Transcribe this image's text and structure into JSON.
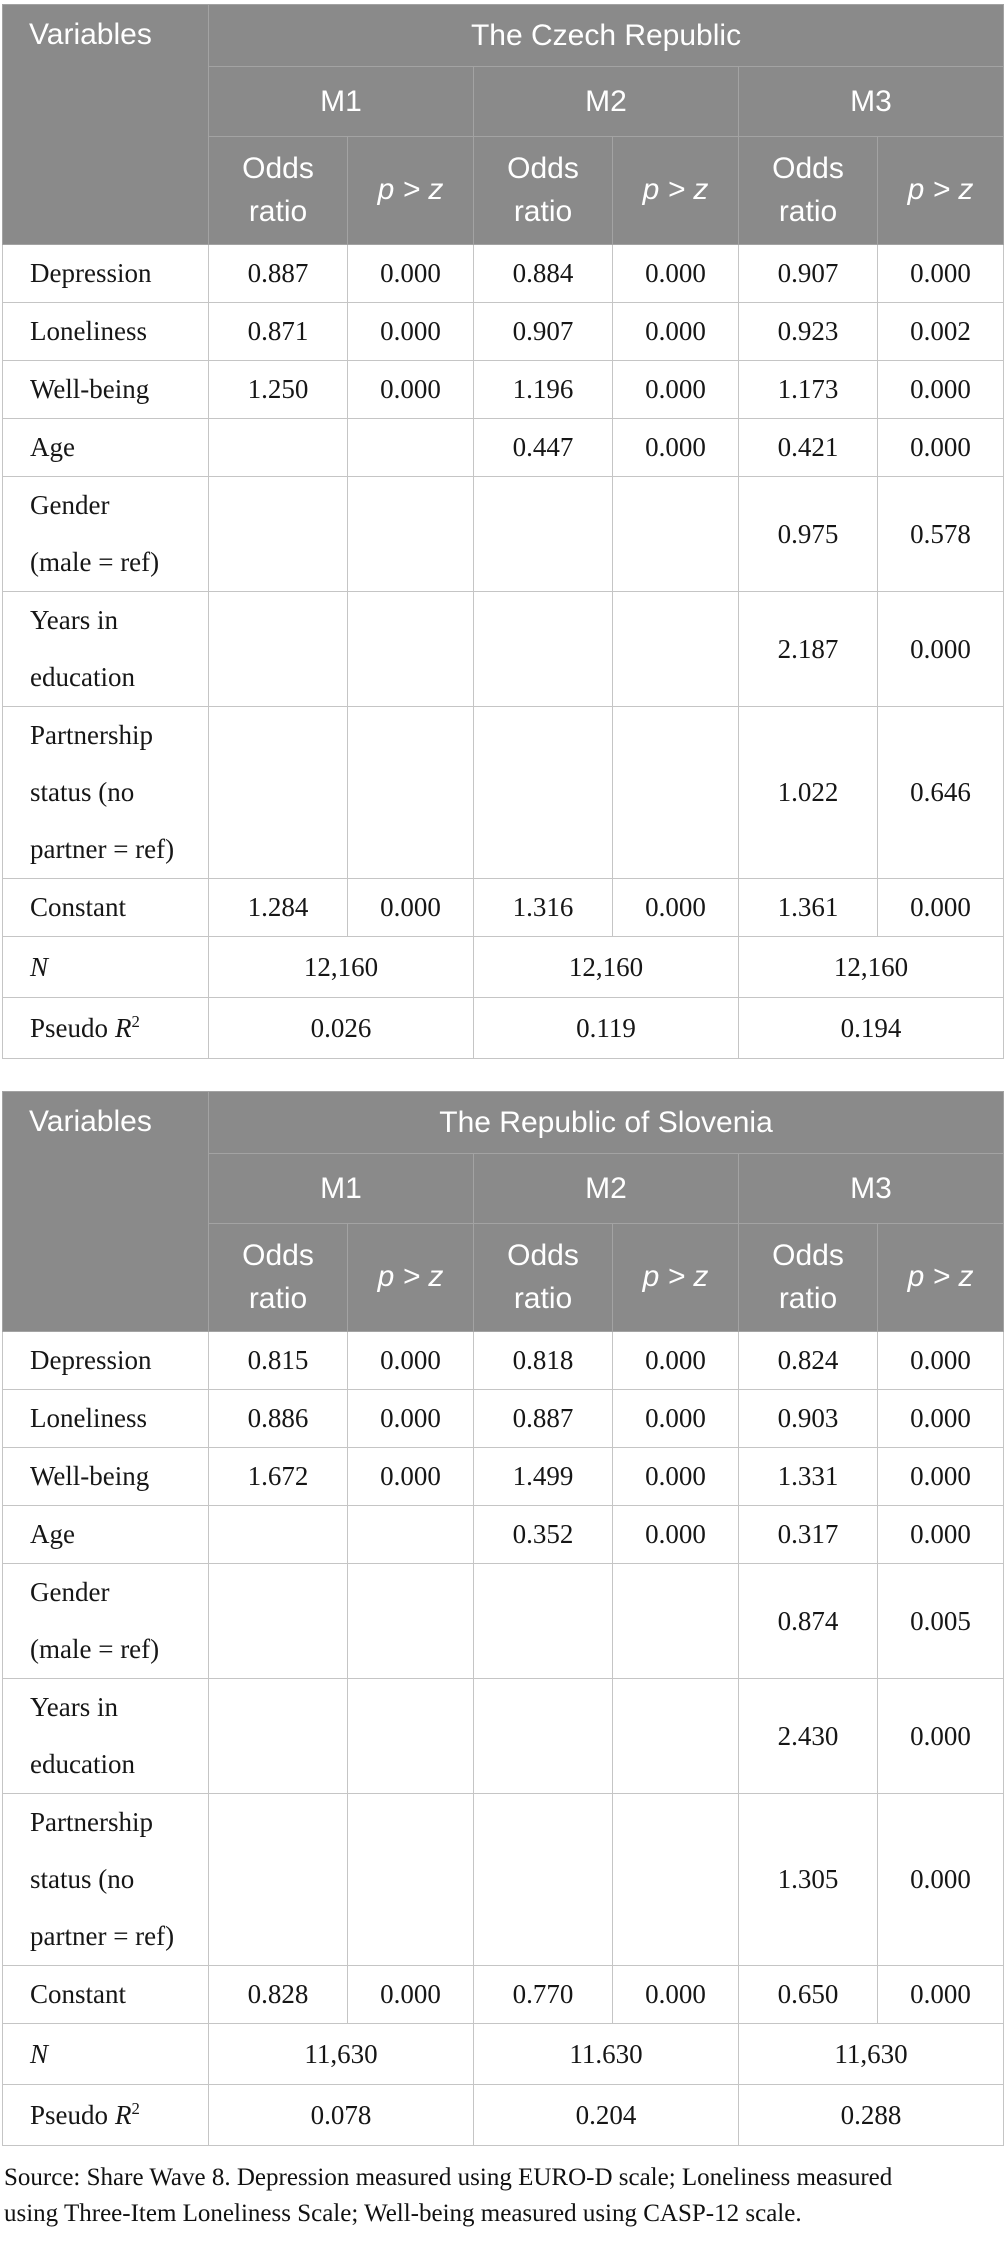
{
  "header": {
    "variables": "Variables",
    "models": [
      "M1",
      "M2",
      "M3"
    ],
    "odds_ratio": "Odds\nratio",
    "p_gt_z": "p > z",
    "n_label": "N",
    "pseudo_word": "Pseudo",
    "pseudo_r": "R",
    "pseudo_sup": "2"
  },
  "tables": [
    {
      "title": "The Czech Republic",
      "rows": [
        {
          "label": "Depression",
          "values": [
            "0.887",
            "0.000",
            "0.884",
            "0.000",
            "0.907",
            "0.000"
          ]
        },
        {
          "label": "Loneliness",
          "values": [
            "0.871",
            "0.000",
            "0.907",
            "0.000",
            "0.923",
            "0.002"
          ]
        },
        {
          "label": "Well-being",
          "values": [
            "1.250",
            "0.000",
            "1.196",
            "0.000",
            "1.173",
            "0.000"
          ]
        },
        {
          "label": "Age",
          "values": [
            "",
            "",
            "0.447",
            "0.000",
            "0.421",
            "0.000"
          ]
        },
        {
          "label": "Gender\n(male = ref)",
          "values": [
            "",
            "",
            "",
            "",
            "0.975",
            "0.578"
          ]
        },
        {
          "label": "Years in\neducation",
          "values": [
            "",
            "",
            "",
            "",
            "2.187",
            "0.000"
          ]
        },
        {
          "label": "Partnership\nstatus (no\npartner = ref)",
          "values": [
            "",
            "",
            "",
            "",
            "1.022",
            "0.646"
          ]
        },
        {
          "label": "Constant",
          "values": [
            "1.284",
            "0.000",
            "1.316",
            "0.000",
            "1.361",
            "0.000"
          ]
        }
      ],
      "n_values": [
        "12,160",
        "12,160",
        "12,160"
      ],
      "pseudo_values": [
        "0.026",
        "0.119",
        "0.194"
      ]
    },
    {
      "title": "The Republic of Slovenia",
      "rows": [
        {
          "label": "Depression",
          "values": [
            "0.815",
            "0.000",
            "0.818",
            "0.000",
            "0.824",
            "0.000"
          ]
        },
        {
          "label": "Loneliness",
          "values": [
            "0.886",
            "0.000",
            "0.887",
            "0.000",
            "0.903",
            "0.000"
          ]
        },
        {
          "label": "Well-being",
          "values": [
            "1.672",
            "0.000",
            "1.499",
            "0.000",
            "1.331",
            "0.000"
          ]
        },
        {
          "label": "Age",
          "values": [
            "",
            "",
            "0.352",
            "0.000",
            "0.317",
            "0.000"
          ]
        },
        {
          "label": "Gender\n(male = ref)",
          "values": [
            "",
            "",
            "",
            "",
            "0.874",
            "0.005"
          ]
        },
        {
          "label": "Years in\neducation",
          "values": [
            "",
            "",
            "",
            "",
            "2.430",
            "0.000"
          ]
        },
        {
          "label": "Partnership\nstatus (no\npartner = ref)",
          "values": [
            "",
            "",
            "",
            "",
            "1.305",
            "0.000"
          ]
        },
        {
          "label": "Constant",
          "values": [
            "0.828",
            "0.000",
            "0.770",
            "0.000",
            "0.650",
            "0.000"
          ]
        }
      ],
      "n_values": [
        "11,630",
        "11.630",
        "11,630"
      ],
      "pseudo_values": [
        "0.078",
        "0.204",
        "0.288"
      ]
    }
  ],
  "footnote": "Source: Share Wave 8. Depression measured using EURO-D scale; Loneliness measured\nusing Three-Item Loneliness Scale; Well-being measured using CASP-12 scale.",
  "colors": {
    "header_bg": "#8a8a8a",
    "header_text": "#ffffff",
    "header_grid": "#a3a3a3",
    "body_grid": "#c5c5c5",
    "body_text": "#161616"
  }
}
